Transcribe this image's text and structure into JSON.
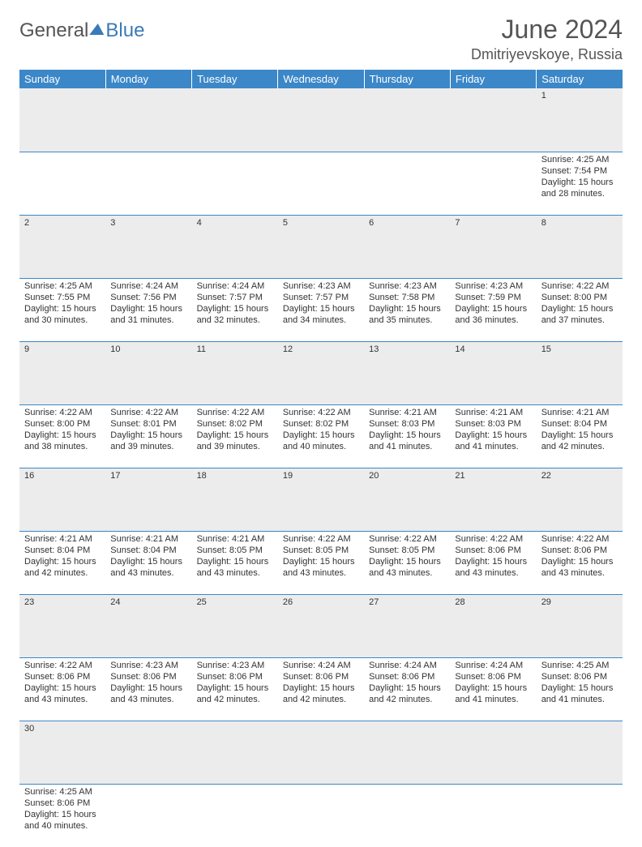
{
  "logo": {
    "word1": "General",
    "word2": "Blue"
  },
  "title": {
    "month": "June 2024",
    "location": "Dmitriyevskoye, Russia"
  },
  "colors": {
    "header_bg": "#3b87c8",
    "header_text": "#ffffff",
    "daynum_bg": "#ececec",
    "rule": "#3b87c8",
    "text": "#333333",
    "logo_gray": "#555555",
    "logo_blue": "#3a7ab8"
  },
  "weekdays": [
    "Sunday",
    "Monday",
    "Tuesday",
    "Wednesday",
    "Thursday",
    "Friday",
    "Saturday"
  ],
  "weeks": [
    [
      null,
      null,
      null,
      null,
      null,
      null,
      {
        "n": "1",
        "sr": "4:25 AM",
        "ss": "7:54 PM",
        "dh": "15",
        "dm": "28"
      }
    ],
    [
      {
        "n": "2",
        "sr": "4:25 AM",
        "ss": "7:55 PM",
        "dh": "15",
        "dm": "30"
      },
      {
        "n": "3",
        "sr": "4:24 AM",
        "ss": "7:56 PM",
        "dh": "15",
        "dm": "31"
      },
      {
        "n": "4",
        "sr": "4:24 AM",
        "ss": "7:57 PM",
        "dh": "15",
        "dm": "32"
      },
      {
        "n": "5",
        "sr": "4:23 AM",
        "ss": "7:57 PM",
        "dh": "15",
        "dm": "34"
      },
      {
        "n": "6",
        "sr": "4:23 AM",
        "ss": "7:58 PM",
        "dh": "15",
        "dm": "35"
      },
      {
        "n": "7",
        "sr": "4:23 AM",
        "ss": "7:59 PM",
        "dh": "15",
        "dm": "36"
      },
      {
        "n": "8",
        "sr": "4:22 AM",
        "ss": "8:00 PM",
        "dh": "15",
        "dm": "37"
      }
    ],
    [
      {
        "n": "9",
        "sr": "4:22 AM",
        "ss": "8:00 PM",
        "dh": "15",
        "dm": "38"
      },
      {
        "n": "10",
        "sr": "4:22 AM",
        "ss": "8:01 PM",
        "dh": "15",
        "dm": "39"
      },
      {
        "n": "11",
        "sr": "4:22 AM",
        "ss": "8:02 PM",
        "dh": "15",
        "dm": "39"
      },
      {
        "n": "12",
        "sr": "4:22 AM",
        "ss": "8:02 PM",
        "dh": "15",
        "dm": "40"
      },
      {
        "n": "13",
        "sr": "4:21 AM",
        "ss": "8:03 PM",
        "dh": "15",
        "dm": "41"
      },
      {
        "n": "14",
        "sr": "4:21 AM",
        "ss": "8:03 PM",
        "dh": "15",
        "dm": "41"
      },
      {
        "n": "15",
        "sr": "4:21 AM",
        "ss": "8:04 PM",
        "dh": "15",
        "dm": "42"
      }
    ],
    [
      {
        "n": "16",
        "sr": "4:21 AM",
        "ss": "8:04 PM",
        "dh": "15",
        "dm": "42"
      },
      {
        "n": "17",
        "sr": "4:21 AM",
        "ss": "8:04 PM",
        "dh": "15",
        "dm": "43"
      },
      {
        "n": "18",
        "sr": "4:21 AM",
        "ss": "8:05 PM",
        "dh": "15",
        "dm": "43"
      },
      {
        "n": "19",
        "sr": "4:22 AM",
        "ss": "8:05 PM",
        "dh": "15",
        "dm": "43"
      },
      {
        "n": "20",
        "sr": "4:22 AM",
        "ss": "8:05 PM",
        "dh": "15",
        "dm": "43"
      },
      {
        "n": "21",
        "sr": "4:22 AM",
        "ss": "8:06 PM",
        "dh": "15",
        "dm": "43"
      },
      {
        "n": "22",
        "sr": "4:22 AM",
        "ss": "8:06 PM",
        "dh": "15",
        "dm": "43"
      }
    ],
    [
      {
        "n": "23",
        "sr": "4:22 AM",
        "ss": "8:06 PM",
        "dh": "15",
        "dm": "43"
      },
      {
        "n": "24",
        "sr": "4:23 AM",
        "ss": "8:06 PM",
        "dh": "15",
        "dm": "43"
      },
      {
        "n": "25",
        "sr": "4:23 AM",
        "ss": "8:06 PM",
        "dh": "15",
        "dm": "42"
      },
      {
        "n": "26",
        "sr": "4:24 AM",
        "ss": "8:06 PM",
        "dh": "15",
        "dm": "42"
      },
      {
        "n": "27",
        "sr": "4:24 AM",
        "ss": "8:06 PM",
        "dh": "15",
        "dm": "42"
      },
      {
        "n": "28",
        "sr": "4:24 AM",
        "ss": "8:06 PM",
        "dh": "15",
        "dm": "41"
      },
      {
        "n": "29",
        "sr": "4:25 AM",
        "ss": "8:06 PM",
        "dh": "15",
        "dm": "41"
      }
    ],
    [
      {
        "n": "30",
        "sr": "4:25 AM",
        "ss": "8:06 PM",
        "dh": "15",
        "dm": "40"
      },
      null,
      null,
      null,
      null,
      null,
      null
    ]
  ],
  "labels": {
    "sunrise": "Sunrise: ",
    "sunset": "Sunset: ",
    "daylight1": "Daylight: ",
    "daylight2": " hours",
    "daylight3": "and ",
    "daylight4": " minutes."
  }
}
